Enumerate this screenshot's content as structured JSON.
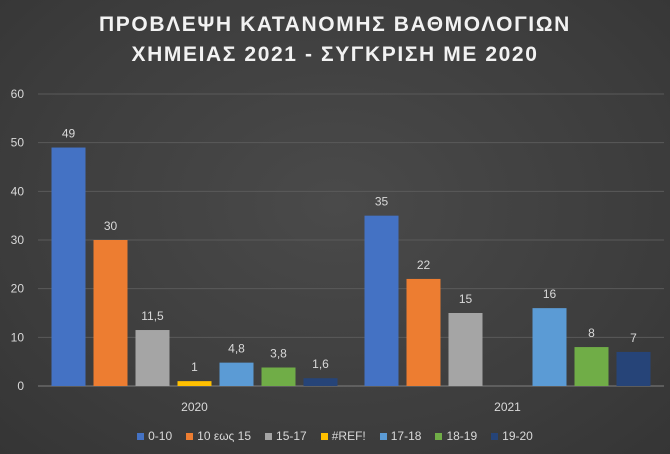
{
  "chart_data": {
    "type": "bar",
    "title_lines": [
      "ΠΡΟΒΛΕΨΗ ΚΑΤΑΝΟΜΗΣ ΒΑΘΜΟΛΟΓΙΩΝ",
      "ΧΗΜΕΙΑΣ 2021 - ΣΥΓΚΡΙΣΗ ΜΕ 2020"
    ],
    "categories": [
      "2020",
      "2021"
    ],
    "ylim": [
      0,
      60
    ],
    "yticks": [
      0,
      10,
      20,
      30,
      40,
      50,
      60
    ],
    "grid": true,
    "legend_position": "bottom",
    "series": [
      {
        "name": "0-10",
        "color": "#4472c4",
        "values": [
          49,
          35
        ],
        "labels": [
          "49",
          "35"
        ]
      },
      {
        "name": "10 εως 15",
        "color": "#ed7d31",
        "values": [
          30,
          22
        ],
        "labels": [
          "30",
          "22"
        ]
      },
      {
        "name": "15-17",
        "color": "#a5a5a5",
        "values": [
          11.5,
          15
        ],
        "labels": [
          "11,5",
          "15"
        ]
      },
      {
        "name": "#REF!",
        "color": "#ffc000",
        "values": [
          1,
          null
        ],
        "labels": [
          "1",
          ""
        ]
      },
      {
        "name": "17-18",
        "color": "#5b9bd5",
        "values": [
          4.8,
          16
        ],
        "labels": [
          "4,8",
          "16"
        ]
      },
      {
        "name": "18-19",
        "color": "#70ad47",
        "values": [
          3.8,
          8
        ],
        "labels": [
          "3,8",
          "8"
        ]
      },
      {
        "name": "19-20",
        "color": "#264478",
        "values": [
          1.6,
          7
        ],
        "labels": [
          "1,6",
          "7"
        ]
      }
    ]
  }
}
